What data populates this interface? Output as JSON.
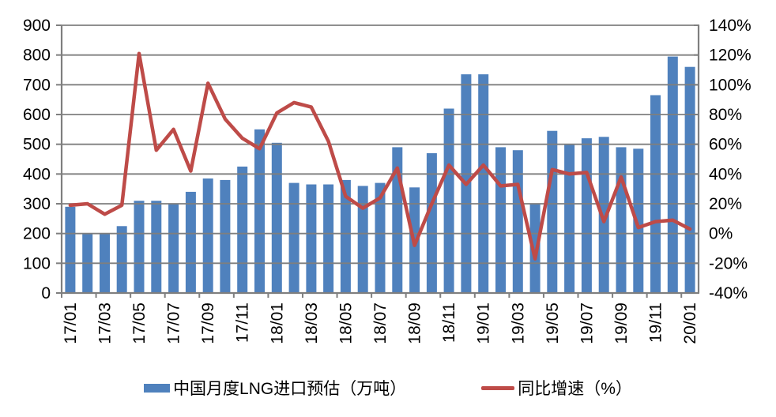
{
  "chart_data": {
    "type": "combo-bar-line",
    "title": "",
    "categories": [
      "17/01",
      "17/02",
      "17/03",
      "17/04",
      "17/05",
      "17/06",
      "17/07",
      "17/08",
      "17/09",
      "17/10",
      "17/11",
      "17/12",
      "18/01",
      "18/02",
      "18/03",
      "18/04",
      "18/05",
      "18/06",
      "18/07",
      "18/08",
      "18/09",
      "18/10",
      "18/11",
      "18/12",
      "19/01",
      "19/02",
      "19/03",
      "19/04",
      "19/05",
      "19/06",
      "19/07",
      "19/08",
      "19/09",
      "19/10",
      "19/11",
      "19/12",
      "20/01"
    ],
    "x_tick_labels": [
      "17/01",
      "17/03",
      "17/05",
      "17/07",
      "17/09",
      "17/11",
      "18/01",
      "18/03",
      "18/05",
      "18/07",
      "18/09",
      "18/11",
      "19/01",
      "19/03",
      "19/05",
      "19/07",
      "19/09",
      "19/11",
      "20/01"
    ],
    "x_label_interval": 2,
    "series": [
      {
        "name": "中国月度LNG进口预估（万吨）",
        "type": "bar",
        "axis": "left",
        "color": "#4F81BD",
        "values": [
          290,
          200,
          200,
          225,
          310,
          310,
          300,
          340,
          385,
          380,
          425,
          550,
          505,
          370,
          365,
          365,
          380,
          360,
          370,
          490,
          355,
          470,
          620,
          735,
          735,
          490,
          480,
          300,
          545,
          500,
          520,
          525,
          490,
          485,
          665,
          795,
          760
        ]
      },
      {
        "name": "同比增速（%）",
        "type": "line",
        "axis": "right",
        "color": "#BE4B48",
        "values": [
          19,
          20,
          13,
          19,
          121,
          56,
          70,
          42,
          101,
          77,
          64,
          57,
          81,
          88,
          85,
          62,
          25,
          17,
          24,
          44,
          -8,
          20,
          46,
          33,
          46,
          32,
          33,
          -17,
          43,
          40,
          41,
          8,
          38,
          4,
          8,
          9,
          3
        ]
      }
    ],
    "left_axis": {
      "min": 0,
      "max": 900,
      "step": 100,
      "tick_labels": [
        "0",
        "100",
        "200",
        "300",
        "400",
        "500",
        "600",
        "700",
        "800",
        "900"
      ]
    },
    "right_axis": {
      "min": -40,
      "max": 140,
      "step": 20,
      "tick_labels": [
        "-40%",
        "-20%",
        "0%",
        "20%",
        "40%",
        "60%",
        "80%",
        "100%",
        "120%",
        "140%"
      ]
    },
    "grid": true,
    "legend_position": "bottom"
  },
  "colors": {
    "grid": "#7F7F7F",
    "axis": "#7F7F7F",
    "text": "#000000",
    "background": "#FFFFFF"
  }
}
